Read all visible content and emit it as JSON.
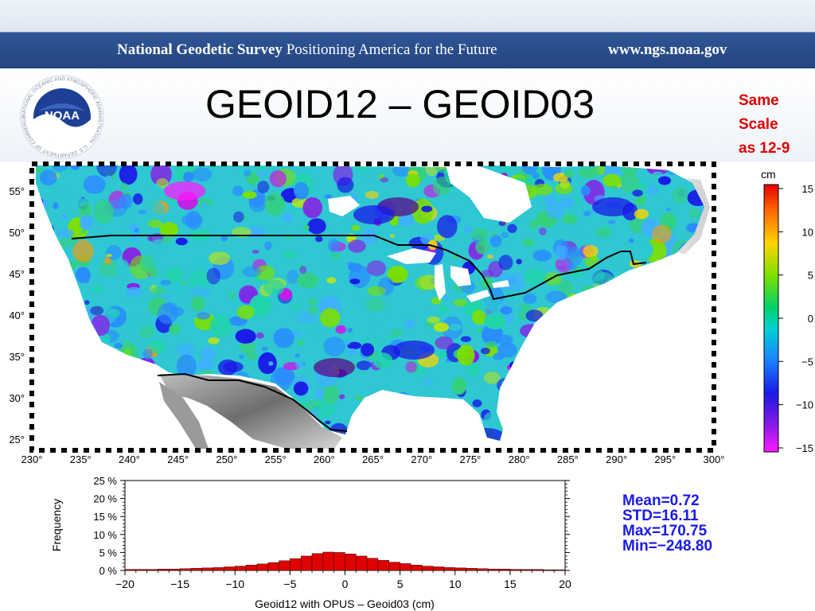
{
  "banner": {
    "org_name": "National Geodetic Survey",
    "tagline": "Positioning America for the Future",
    "url": "www.ngs.noaa.gov"
  },
  "logo": {
    "text": "NOAA",
    "ring_text": "NATIONAL OCEANIC AND ATMOSPHERIC ADMINISTRATION · U.S. DEPARTMENT OF COMMERCE"
  },
  "slide": {
    "title": "GEOID12 – GEOID03",
    "note_lines": [
      "Same",
      "Scale",
      "as 12-9"
    ]
  },
  "map": {
    "lon_labels": [
      "230°",
      "235°",
      "240°",
      "245°",
      "250°",
      "255°",
      "260°",
      "265°",
      "270°",
      "275°",
      "280°",
      "285°",
      "290°",
      "295°",
      "300°"
    ],
    "lat_labels": [
      "55°",
      "50°",
      "45°",
      "40°",
      "35°",
      "30°",
      "25°"
    ],
    "colors": {
      "ocean": "#ffffff",
      "land_base": "#2ec7d2",
      "border": "#000000"
    }
  },
  "colorbar": {
    "unit": "cm",
    "tick_labels": [
      "15",
      "10",
      "5",
      "0",
      "−5",
      "−10",
      "−15"
    ],
    "range": [
      -15,
      15
    ]
  },
  "chart_data": {
    "type": "bar",
    "xlabel": "Geoid12 with OPUS  –  Geoid03 (cm)",
    "ylabel": "Frequency",
    "x_tick_labels": [
      "−20",
      "−15",
      "−10",
      "−5",
      "0",
      "5",
      "10",
      "15",
      "20"
    ],
    "y_tick_labels": [
      "0 %",
      "5 %",
      "10 %",
      "15 %",
      "20 %",
      "25 %"
    ],
    "xlim": [
      -20,
      20
    ],
    "ylim": [
      0,
      25
    ],
    "bar_color": "#e00000",
    "bin_centers": [
      -19.5,
      -18.5,
      -17.5,
      -16.5,
      -15.5,
      -14.5,
      -13.5,
      -12.5,
      -11.5,
      -10.5,
      -9.5,
      -8.5,
      -7.5,
      -6.5,
      -5.5,
      -4.5,
      -3.5,
      -2.5,
      -1.5,
      -0.5,
      0.5,
      1.5,
      2.5,
      3.5,
      4.5,
      5.5,
      6.5,
      7.5,
      8.5,
      9.5,
      10.5,
      11.5,
      12.5,
      13.5,
      14.5,
      15.5,
      16.5,
      17.5,
      18.5,
      19.5
    ],
    "values": [
      0.3,
      0.3,
      0.3,
      0.4,
      0.4,
      0.5,
      0.6,
      0.7,
      0.8,
      1.0,
      1.2,
      1.5,
      1.8,
      2.2,
      2.7,
      3.3,
      4.0,
      4.7,
      5.1,
      5.0,
      4.6,
      4.0,
      3.4,
      2.8,
      2.3,
      1.9,
      1.5,
      1.2,
      1.0,
      0.8,
      0.7,
      0.6,
      0.5,
      0.4,
      0.4,
      0.3,
      0.3,
      0.3,
      0.2,
      0.2
    ]
  },
  "stats": {
    "mean": "Mean=0.72",
    "std": "STD=16.11",
    "max": "Max=170.75",
    "min": "Min=−248.80"
  }
}
